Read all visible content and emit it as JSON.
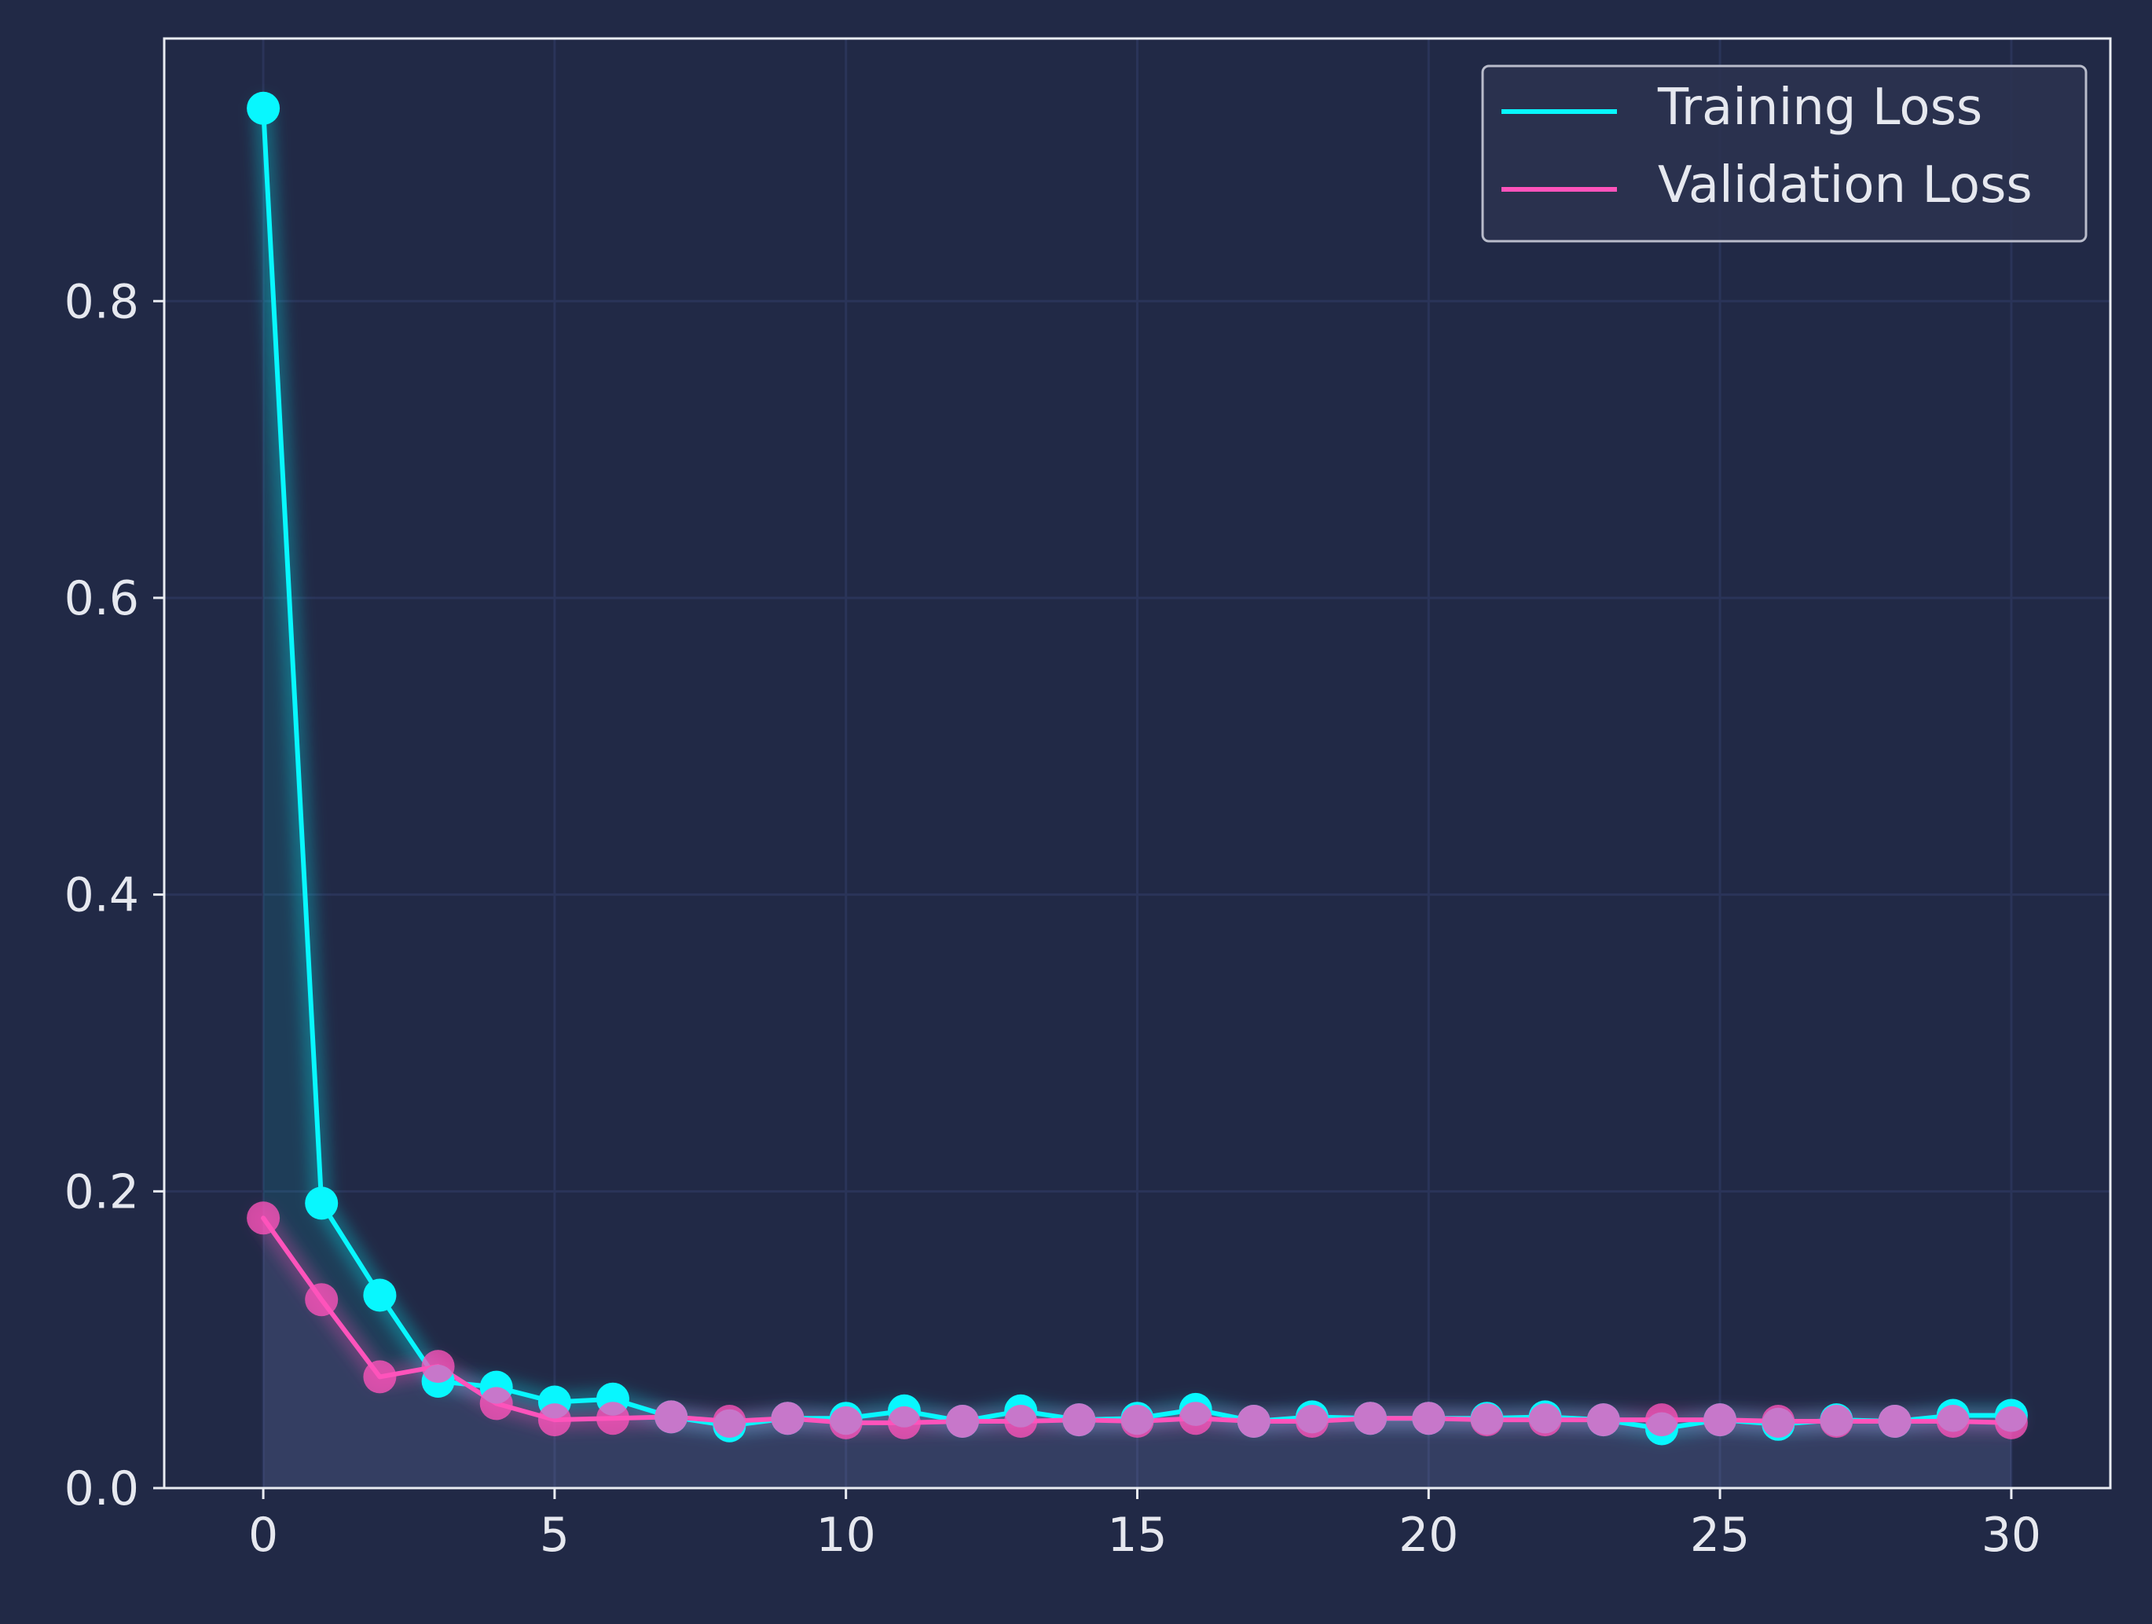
{
  "chart_data": {
    "type": "line",
    "title": "",
    "xlabel": "",
    "ylabel": "",
    "xlim": [
      -1.7,
      31.7
    ],
    "ylim": [
      0,
      0.977
    ],
    "x_ticks": [
      0,
      5,
      10,
      15,
      20,
      25,
      30
    ],
    "y_ticks": [
      0.0,
      0.2,
      0.4,
      0.6,
      0.8
    ],
    "x_tick_labels": [
      "0",
      "5",
      "10",
      "15",
      "20",
      "25",
      "30"
    ],
    "y_tick_labels": [
      "0.0",
      "0.2",
      "0.4",
      "0.6",
      "0.8"
    ],
    "grid": true,
    "legend_position": "top-right",
    "x": [
      0,
      1,
      2,
      3,
      4,
      5,
      6,
      7,
      8,
      9,
      10,
      11,
      12,
      13,
      14,
      15,
      16,
      17,
      18,
      19,
      20,
      21,
      22,
      23,
      24,
      25,
      26,
      27,
      28,
      29,
      30
    ],
    "series": [
      {
        "name": "Training Loss",
        "color": "#08F7FE",
        "values": [
          0.93,
          0.192,
          0.13,
          0.072,
          0.068,
          0.058,
          0.06,
          0.048,
          0.042,
          0.047,
          0.047,
          0.052,
          0.045,
          0.052,
          0.046,
          0.047,
          0.053,
          0.045,
          0.048,
          0.047,
          0.047,
          0.047,
          0.048,
          0.046,
          0.04,
          0.046,
          0.043,
          0.046,
          0.045,
          0.049,
          0.049
        ]
      },
      {
        "name": "Validation Loss",
        "color": "#FE53BB",
        "values": [
          0.182,
          0.127,
          0.075,
          0.082,
          0.057,
          0.046,
          0.047,
          0.048,
          0.045,
          0.047,
          0.044,
          0.044,
          0.045,
          0.045,
          0.046,
          0.045,
          0.047,
          0.045,
          0.045,
          0.047,
          0.047,
          0.046,
          0.046,
          0.046,
          0.046,
          0.046,
          0.045,
          0.045,
          0.045,
          0.045,
          0.044
        ]
      }
    ]
  },
  "legend": {
    "items": [
      "Training Loss",
      "Validation Loss"
    ]
  }
}
